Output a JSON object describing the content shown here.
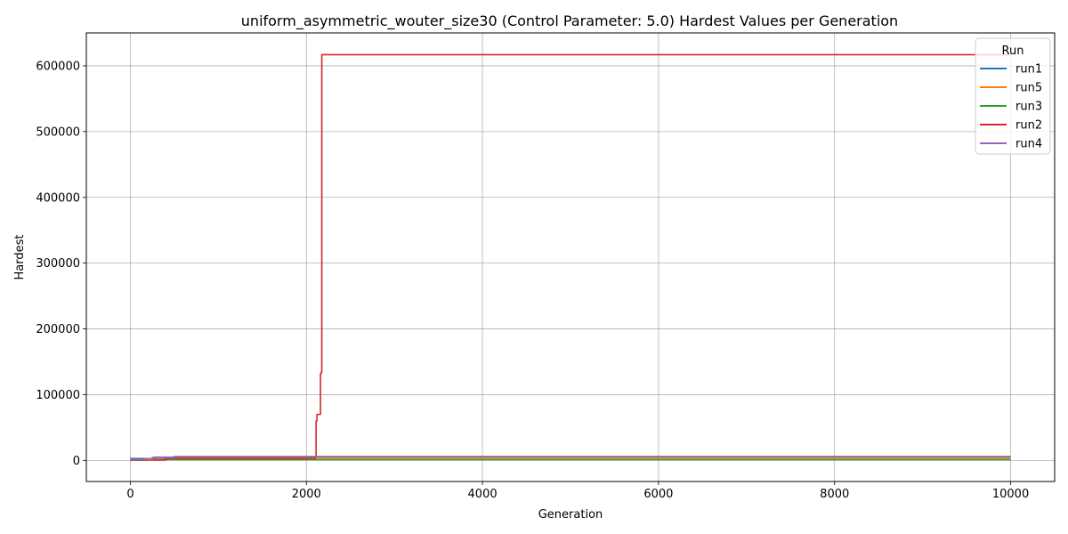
{
  "chart_data": {
    "type": "line",
    "title": "uniform_asymmetric_wouter_size30 (Control Parameter: 5.0) Hardest Values per Generation",
    "xlabel": "Generation",
    "ylabel": "Hardest",
    "xlim": [
      -500,
      10500
    ],
    "ylim": [
      -32000,
      650000
    ],
    "xticks": [
      0,
      2000,
      4000,
      6000,
      8000,
      10000
    ],
    "yticks": [
      0,
      100000,
      200000,
      300000,
      400000,
      500000,
      600000
    ],
    "grid": true,
    "legend": {
      "title": "Run",
      "placement": "top-right"
    },
    "series": [
      {
        "name": "run1",
        "color": "#1f77b4",
        "points": [
          [
            0,
            3000
          ],
          [
            270,
            3000
          ],
          [
            270,
            5000
          ],
          [
            10000,
            5000
          ]
        ]
      },
      {
        "name": "run5",
        "color": "#ff7f0e",
        "points": [
          [
            0,
            1000
          ],
          [
            150,
            1000
          ],
          [
            150,
            2500
          ],
          [
            400,
            2500
          ],
          [
            400,
            3800
          ],
          [
            10000,
            3800
          ]
        ]
      },
      {
        "name": "run3",
        "color": "#2ca02c",
        "points": [
          [
            0,
            500
          ],
          [
            200,
            500
          ],
          [
            200,
            1200
          ],
          [
            10000,
            1200
          ]
        ]
      },
      {
        "name": "run2",
        "color": "#d62728",
        "points": [
          [
            0,
            500
          ],
          [
            400,
            500
          ],
          [
            400,
            3000
          ],
          [
            2100,
            3000
          ],
          [
            2100,
            6000
          ],
          [
            2110,
            6000
          ],
          [
            2110,
            60000
          ],
          [
            2120,
            60000
          ],
          [
            2120,
            70000
          ],
          [
            2160,
            70000
          ],
          [
            2160,
            132000
          ],
          [
            2170,
            132000
          ],
          [
            2170,
            135000
          ],
          [
            2175,
            135000
          ],
          [
            2175,
            617000
          ],
          [
            10000,
            617000
          ]
        ]
      },
      {
        "name": "run4",
        "color": "#9467bd",
        "points": [
          [
            0,
            1500
          ],
          [
            250,
            1500
          ],
          [
            250,
            4500
          ],
          [
            500,
            4500
          ],
          [
            500,
            6000
          ],
          [
            10000,
            6000
          ]
        ]
      }
    ]
  }
}
